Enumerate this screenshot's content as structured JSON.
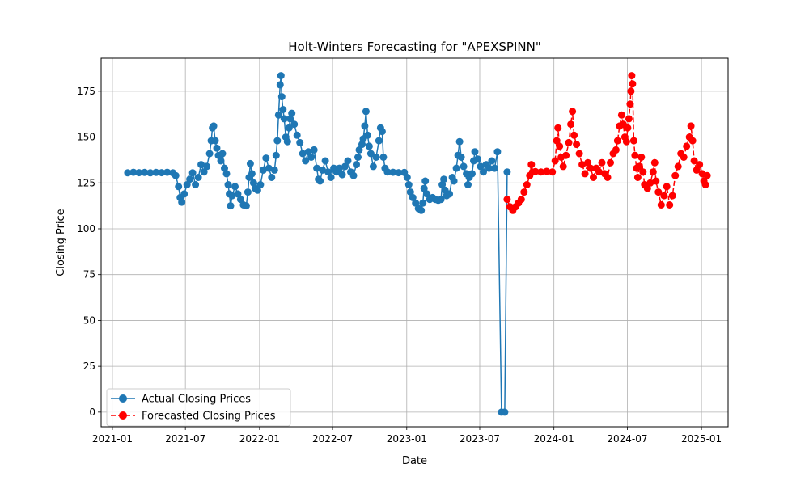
{
  "chart_data": {
    "type": "line",
    "title": "Holt-Winters Forecasting for \"APEXSPINN\"",
    "xlabel": "Date",
    "ylabel": "Closing Price",
    "xlim": [
      "2020-12-04",
      "2025-03-08"
    ],
    "ylim": [
      -8,
      193
    ],
    "grid": true,
    "legend_position": "lower-left",
    "x_ticks": [
      "2021-01",
      "2021-07",
      "2022-01",
      "2022-07",
      "2023-01",
      "2023-07",
      "2024-01",
      "2024-07",
      "2025-01"
    ],
    "y_ticks": [
      0,
      25,
      50,
      75,
      100,
      125,
      150,
      175
    ],
    "series": [
      {
        "name": "Actual Closing Prices",
        "color": "#1f77b4",
        "line_style": "solid",
        "marker": "circle",
        "points": [
          [
            "2021-02-08",
            130.5
          ],
          [
            "2021-02-22",
            130.8
          ],
          [
            "2021-03-08",
            130.6
          ],
          [
            "2021-03-22",
            130.7
          ],
          [
            "2021-04-05",
            130.5
          ],
          [
            "2021-04-19",
            130.7
          ],
          [
            "2021-05-03",
            130.6
          ],
          [
            "2021-05-17",
            130.8
          ],
          [
            "2021-05-31",
            130.5
          ],
          [
            "2021-06-07",
            129.0
          ],
          [
            "2021-06-14",
            123.0
          ],
          [
            "2021-06-18",
            117.0
          ],
          [
            "2021-06-22",
            114.5
          ],
          [
            "2021-06-28",
            119.0
          ],
          [
            "2021-07-05",
            124.0
          ],
          [
            "2021-07-12",
            127.0
          ],
          [
            "2021-07-19",
            130.5
          ],
          [
            "2021-07-26",
            124.0
          ],
          [
            "2021-08-02",
            128.0
          ],
          [
            "2021-08-09",
            135.0
          ],
          [
            "2021-08-16",
            131.0
          ],
          [
            "2021-08-23",
            134.0
          ],
          [
            "2021-08-30",
            141.0
          ],
          [
            "2021-09-03",
            148.0
          ],
          [
            "2021-09-06",
            155.0
          ],
          [
            "2021-09-09",
            156.0
          ],
          [
            "2021-09-13",
            148.0
          ],
          [
            "2021-09-17",
            144.0
          ],
          [
            "2021-09-21",
            140.0
          ],
          [
            "2021-09-27",
            137.0
          ],
          [
            "2021-10-01",
            141.0
          ],
          [
            "2021-10-06",
            133.0
          ],
          [
            "2021-10-11",
            130.0
          ],
          [
            "2021-10-15",
            124.0
          ],
          [
            "2021-10-18",
            119.0
          ],
          [
            "2021-10-21",
            112.5
          ],
          [
            "2021-10-25",
            118.0
          ],
          [
            "2021-11-01",
            123.0
          ],
          [
            "2021-11-08",
            119.0
          ],
          [
            "2021-11-15",
            116.0
          ],
          [
            "2021-11-22",
            113.0
          ],
          [
            "2021-11-29",
            112.5
          ],
          [
            "2021-12-03",
            120.0
          ],
          [
            "2021-12-06",
            128.0
          ],
          [
            "2021-12-09",
            135.5
          ],
          [
            "2021-12-13",
            130.0
          ],
          [
            "2021-12-17",
            125.0
          ],
          [
            "2021-12-21",
            122.0
          ],
          [
            "2021-12-27",
            121.0
          ],
          [
            "2022-01-03",
            124.0
          ],
          [
            "2022-01-10",
            132.0
          ],
          [
            "2022-01-17",
            138.5
          ],
          [
            "2022-01-24",
            133.0
          ],
          [
            "2022-01-31",
            128.0
          ],
          [
            "2022-02-07",
            132.0
          ],
          [
            "2022-02-11",
            140.0
          ],
          [
            "2022-02-14",
            148.0
          ],
          [
            "2022-02-17",
            162.0
          ],
          [
            "2022-02-21",
            178.5
          ],
          [
            "2022-02-23",
            183.5
          ],
          [
            "2022-02-25",
            172.0
          ],
          [
            "2022-02-28",
            165.0
          ],
          [
            "2022-03-03",
            160.0
          ],
          [
            "2022-03-07",
            150.0
          ],
          [
            "2022-03-11",
            147.5
          ],
          [
            "2022-03-15",
            155.0
          ],
          [
            "2022-03-18",
            160.0
          ],
          [
            "2022-03-22",
            163.0
          ],
          [
            "2022-03-28",
            157.0
          ],
          [
            "2022-04-04",
            151.0
          ],
          [
            "2022-04-11",
            147.0
          ],
          [
            "2022-04-18",
            141.0
          ],
          [
            "2022-04-25",
            137.0
          ],
          [
            "2022-05-02",
            142.0
          ],
          [
            "2022-05-09",
            139.0
          ],
          [
            "2022-05-16",
            143.0
          ],
          [
            "2022-05-23",
            133.0
          ],
          [
            "2022-05-27",
            127.0
          ],
          [
            "2022-05-31",
            126.0
          ],
          [
            "2022-06-06",
            132.0
          ],
          [
            "2022-06-13",
            137.0
          ],
          [
            "2022-06-20",
            131.0
          ],
          [
            "2022-06-27",
            128.0
          ],
          [
            "2022-07-04",
            133.0
          ],
          [
            "2022-07-11",
            131.0
          ],
          [
            "2022-07-18",
            133.0
          ],
          [
            "2022-07-25",
            129.5
          ],
          [
            "2022-08-01",
            134.0
          ],
          [
            "2022-08-08",
            137.0
          ],
          [
            "2022-08-15",
            131.0
          ],
          [
            "2022-08-22",
            129.0
          ],
          [
            "2022-08-29",
            135.0
          ],
          [
            "2022-09-02",
            139.0
          ],
          [
            "2022-09-05",
            143.0
          ],
          [
            "2022-09-12",
            146.0
          ],
          [
            "2022-09-15",
            149.0
          ],
          [
            "2022-09-19",
            156.0
          ],
          [
            "2022-09-22",
            164.0
          ],
          [
            "2022-09-26",
            151.0
          ],
          [
            "2022-09-30",
            145.0
          ],
          [
            "2022-10-04",
            141.0
          ],
          [
            "2022-10-10",
            134.0
          ],
          [
            "2022-10-17",
            139.0
          ],
          [
            "2022-10-24",
            148.0
          ],
          [
            "2022-10-28",
            155.0
          ],
          [
            "2022-11-01",
            153.0
          ],
          [
            "2022-11-04",
            139.0
          ],
          [
            "2022-11-08",
            133.0
          ],
          [
            "2022-11-14",
            131.0
          ],
          [
            "2022-11-28",
            130.8
          ],
          [
            "2022-12-12",
            130.6
          ],
          [
            "2022-12-26",
            130.7
          ],
          [
            "2023-01-02",
            128.0
          ],
          [
            "2023-01-06",
            124.0
          ],
          [
            "2023-01-10",
            120.0
          ],
          [
            "2023-01-16",
            117.0
          ],
          [
            "2023-01-23",
            114.0
          ],
          [
            "2023-01-30",
            111.0
          ],
          [
            "2023-02-06",
            110.0
          ],
          [
            "2023-02-10",
            114.0
          ],
          [
            "2023-02-13",
            122.0
          ],
          [
            "2023-02-16",
            126.0
          ],
          [
            "2023-02-20",
            119.0
          ],
          [
            "2023-02-27",
            116.0
          ],
          [
            "2023-03-06",
            117.0
          ],
          [
            "2023-03-13",
            116.0
          ],
          [
            "2023-03-20",
            115.5
          ],
          [
            "2023-03-27",
            116.0
          ],
          [
            "2023-03-30",
            124.0
          ],
          [
            "2023-04-03",
            127.0
          ],
          [
            "2023-04-06",
            121.0
          ],
          [
            "2023-04-10",
            118.0
          ],
          [
            "2023-04-17",
            119.0
          ],
          [
            "2023-04-24",
            128.0
          ],
          [
            "2023-04-28",
            126.0
          ],
          [
            "2023-05-04",
            133.0
          ],
          [
            "2023-05-08",
            140.0
          ],
          [
            "2023-05-12",
            147.5
          ],
          [
            "2023-05-16",
            139.0
          ],
          [
            "2023-05-22",
            134.0
          ],
          [
            "2023-05-29",
            130.0
          ],
          [
            "2023-06-02",
            124.0
          ],
          [
            "2023-06-05",
            128.0
          ],
          [
            "2023-06-12",
            130.0
          ],
          [
            "2023-06-16",
            137.0
          ],
          [
            "2023-06-19",
            142.0
          ],
          [
            "2023-06-26",
            138.0
          ],
          [
            "2023-07-03",
            134.0
          ],
          [
            "2023-07-10",
            131.0
          ],
          [
            "2023-07-17",
            135.0
          ],
          [
            "2023-07-24",
            133.0
          ],
          [
            "2023-07-31",
            137.0
          ],
          [
            "2023-08-07",
            133.0
          ],
          [
            "2023-08-14",
            142.0
          ],
          [
            "2023-08-24",
            0.0
          ],
          [
            "2023-09-01",
            0.0
          ],
          [
            "2023-09-07",
            131.0
          ]
        ]
      },
      {
        "name": "Forecasted Closing Prices",
        "color": "#ff0000",
        "line_style": "dashed",
        "marker": "circle",
        "points": [
          [
            "2023-09-07",
            116.0
          ],
          [
            "2023-09-14",
            112.0
          ],
          [
            "2023-09-21",
            110.0
          ],
          [
            "2023-09-28",
            112.0
          ],
          [
            "2023-10-05",
            114.0
          ],
          [
            "2023-10-12",
            116.0
          ],
          [
            "2023-10-19",
            120.0
          ],
          [
            "2023-10-26",
            124.0
          ],
          [
            "2023-11-02",
            129.0
          ],
          [
            "2023-11-06",
            135.0
          ],
          [
            "2023-11-09",
            131.0
          ],
          [
            "2023-11-16",
            131.2
          ],
          [
            "2023-11-30",
            131.0
          ],
          [
            "2023-12-14",
            131.3
          ],
          [
            "2023-12-28",
            131.0
          ],
          [
            "2024-01-04",
            137.0
          ],
          [
            "2024-01-08",
            148.0
          ],
          [
            "2024-01-11",
            155.0
          ],
          [
            "2024-01-15",
            145.0
          ],
          [
            "2024-01-19",
            139.0
          ],
          [
            "2024-01-24",
            134.0
          ],
          [
            "2024-01-31",
            140.0
          ],
          [
            "2024-02-07",
            147.0
          ],
          [
            "2024-02-12",
            157.0
          ],
          [
            "2024-02-16",
            164.0
          ],
          [
            "2024-02-20",
            151.0
          ],
          [
            "2024-02-26",
            146.0
          ],
          [
            "2024-03-04",
            141.0
          ],
          [
            "2024-03-11",
            135.0
          ],
          [
            "2024-03-18",
            130.0
          ],
          [
            "2024-03-25",
            136.0
          ],
          [
            "2024-04-01",
            133.0
          ],
          [
            "2024-04-08",
            128.0
          ],
          [
            "2024-04-15",
            133.0
          ],
          [
            "2024-04-22",
            131.0
          ],
          [
            "2024-04-29",
            136.0
          ],
          [
            "2024-05-06",
            130.0
          ],
          [
            "2024-05-13",
            128.0
          ],
          [
            "2024-05-20",
            136.0
          ],
          [
            "2024-05-27",
            141.0
          ],
          [
            "2024-06-03",
            143.0
          ],
          [
            "2024-06-07",
            148.0
          ],
          [
            "2024-06-12",
            156.0
          ],
          [
            "2024-06-17",
            162.0
          ],
          [
            "2024-06-21",
            157.0
          ],
          [
            "2024-06-25",
            150.0
          ],
          [
            "2024-06-29",
            147.5
          ],
          [
            "2024-07-02",
            155.0
          ],
          [
            "2024-07-05",
            160.0
          ],
          [
            "2024-07-08",
            168.0
          ],
          [
            "2024-07-10",
            175.0
          ],
          [
            "2024-07-12",
            183.5
          ],
          [
            "2024-07-14",
            179.0
          ],
          [
            "2024-07-17",
            148.0
          ],
          [
            "2024-07-20",
            140.0
          ],
          [
            "2024-07-24",
            133.0
          ],
          [
            "2024-07-27",
            128.0
          ],
          [
            "2024-07-31",
            134.0
          ],
          [
            "2024-08-05",
            139.0
          ],
          [
            "2024-08-09",
            131.0
          ],
          [
            "2024-08-13",
            124.0
          ],
          [
            "2024-08-20",
            122.0
          ],
          [
            "2024-08-27",
            125.0
          ],
          [
            "2024-09-03",
            131.0
          ],
          [
            "2024-09-07",
            136.0
          ],
          [
            "2024-09-10",
            126.0
          ],
          [
            "2024-09-16",
            120.0
          ],
          [
            "2024-09-23",
            113.0
          ],
          [
            "2024-09-30",
            118.0
          ],
          [
            "2024-10-07",
            123.0
          ],
          [
            "2024-10-14",
            113.0
          ],
          [
            "2024-10-21",
            118.0
          ],
          [
            "2024-10-28",
            129.0
          ],
          [
            "2024-11-04",
            134.0
          ],
          [
            "2024-11-11",
            141.0
          ],
          [
            "2024-11-18",
            139.0
          ],
          [
            "2024-11-25",
            145.0
          ],
          [
            "2024-12-02",
            150.0
          ],
          [
            "2024-12-06",
            156.0
          ],
          [
            "2024-12-10",
            148.0
          ],
          [
            "2024-12-14",
            137.0
          ],
          [
            "2024-12-20",
            132.0
          ],
          [
            "2024-12-27",
            135.0
          ],
          [
            "2025-01-03",
            130.0
          ],
          [
            "2025-01-07",
            126.0
          ],
          [
            "2025-01-11",
            124.0
          ],
          [
            "2025-01-15",
            129.0
          ]
        ]
      }
    ]
  }
}
